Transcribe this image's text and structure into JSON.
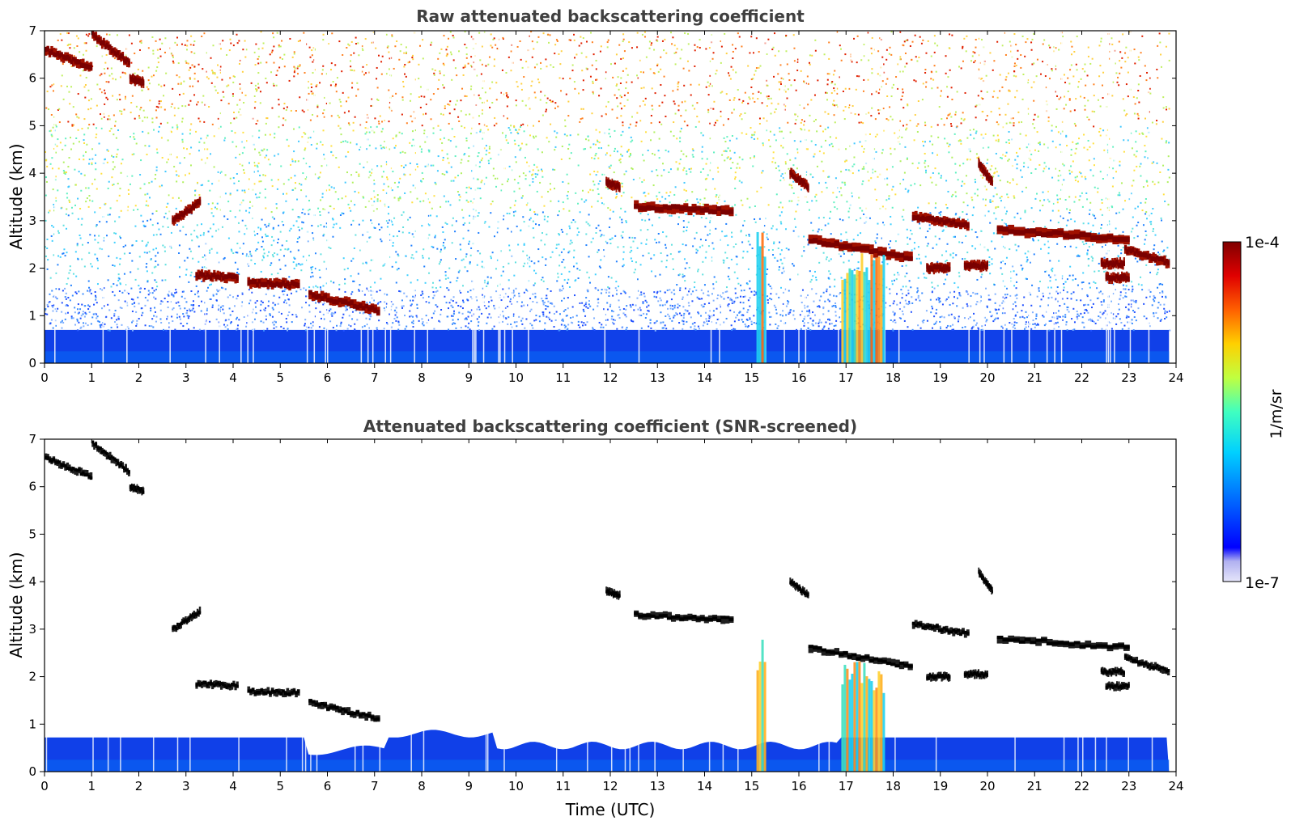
{
  "chart_data": [
    {
      "type": "heatmap",
      "title": "Raw attenuated backscattering coefficient",
      "xlabel": "",
      "ylabel": "Altitude (km)",
      "xlim": [
        0,
        24
      ],
      "ylim": [
        0,
        7
      ],
      "x_ticks": [
        "0",
        "1",
        "2",
        "3",
        "4",
        "5",
        "6",
        "7",
        "8",
        "9",
        "10",
        "11",
        "12",
        "13",
        "14",
        "15",
        "16",
        "17",
        "18",
        "19",
        "20",
        "21",
        "22",
        "23",
        "24"
      ],
      "y_ticks": [
        "0",
        "1",
        "2",
        "3",
        "4",
        "5",
        "6",
        "7"
      ],
      "data_end_time": 23.85,
      "boundary_layer_top_km": 0.7,
      "cloud_layers": [
        {
          "t": [
            0.0,
            1.0
          ],
          "alt_km": [
            6.6,
            6.2
          ]
        },
        {
          "t": [
            1.0,
            1.8
          ],
          "alt_km": [
            6.9,
            6.3
          ]
        },
        {
          "t": [
            1.8,
            2.1
          ],
          "alt_km": [
            6.0,
            5.9
          ]
        },
        {
          "t": [
            2.7,
            3.3
          ],
          "alt_km": [
            3.0,
            3.4
          ]
        },
        {
          "t": [
            3.2,
            4.1
          ],
          "alt_km": [
            1.85,
            1.8
          ]
        },
        {
          "t": [
            4.3,
            5.4
          ],
          "alt_km": [
            1.7,
            1.65
          ]
        },
        {
          "t": [
            5.6,
            7.1
          ],
          "alt_km": [
            1.45,
            1.1
          ]
        },
        {
          "t": [
            11.9,
            12.2
          ],
          "alt_km": [
            3.8,
            3.7
          ]
        },
        {
          "t": [
            12.5,
            14.6
          ],
          "alt_km": [
            3.3,
            3.2
          ]
        },
        {
          "t": [
            15.8,
            16.2
          ],
          "alt_km": [
            4.0,
            3.7
          ]
        },
        {
          "t": [
            16.2,
            18.4
          ],
          "alt_km": [
            2.6,
            2.2
          ]
        },
        {
          "t": [
            18.4,
            19.6
          ],
          "alt_km": [
            3.1,
            2.9
          ]
        },
        {
          "t": [
            18.7,
            19.2
          ],
          "alt_km": [
            2.0,
            2.0
          ]
        },
        {
          "t": [
            19.5,
            20.0
          ],
          "alt_km": [
            2.05,
            2.05
          ]
        },
        {
          "t": [
            19.8,
            20.1
          ],
          "alt_km": [
            4.2,
            3.8
          ]
        },
        {
          "t": [
            20.2,
            23.0
          ],
          "alt_km": [
            2.8,
            2.6
          ]
        },
        {
          "t": [
            22.4,
            22.9
          ],
          "alt_km": [
            2.1,
            2.1
          ]
        },
        {
          "t": [
            22.5,
            23.0
          ],
          "alt_km": [
            1.8,
            1.8
          ]
        },
        {
          "t": [
            22.9,
            23.85
          ],
          "alt_km": [
            2.4,
            2.1
          ]
        }
      ],
      "precipitation": [
        {
          "t": [
            16.9,
            17.8
          ],
          "alt_km": [
            0,
            2.4
          ]
        },
        {
          "t": [
            15.1,
            15.3
          ],
          "alt_km": [
            0,
            2.9
          ]
        }
      ]
    },
    {
      "type": "heatmap",
      "title": "Attenuated backscattering coefficient (SNR-screened)",
      "xlabel": "Time (UTC)",
      "ylabel": "Altitude (km)",
      "xlim": [
        0,
        24
      ],
      "ylim": [
        0,
        7
      ],
      "x_ticks": [
        "0",
        "1",
        "2",
        "3",
        "4",
        "5",
        "6",
        "7",
        "8",
        "9",
        "10",
        "11",
        "12",
        "13",
        "14",
        "15",
        "16",
        "17",
        "18",
        "19",
        "20",
        "21",
        "22",
        "23",
        "24"
      ],
      "y_ticks": [
        "0",
        "1",
        "2",
        "3",
        "4",
        "5",
        "6",
        "7"
      ],
      "boundary_layer_top_km": 0.75,
      "screened": true
    }
  ],
  "colorbar": {
    "label": "1/m/sr",
    "min_label": "1e-7",
    "max_label": "1e-4",
    "scale": "log",
    "colors": [
      "#e6e6fa",
      "#b0b0f0",
      "#0000ff",
      "#0070ff",
      "#00d0ff",
      "#40ffc0",
      "#c0ff40",
      "#ffd000",
      "#ff6000",
      "#e00000",
      "#800000"
    ]
  }
}
